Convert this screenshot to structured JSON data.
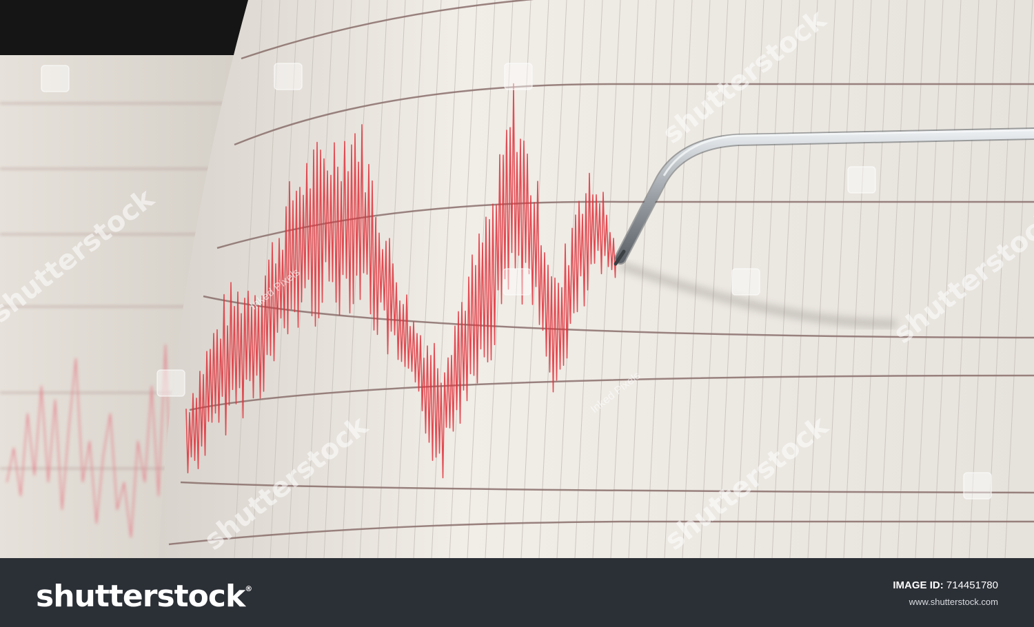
{
  "photo": {
    "subject": "seismograph-needle-drawing-earthquake-trace",
    "paper_color": "#e9e5df",
    "trace_color": "#e0303a",
    "needle_color": "#9aa0a6"
  },
  "watermark": {
    "brand": "shutterstock",
    "contributor": "Inked Pixels"
  },
  "footer": {
    "logo_text": "shutterstock",
    "image_id_label": "IMAGE ID:",
    "image_id_value": "714451780",
    "site_url": "www.shutterstock.com",
    "background": "#2b2f36"
  }
}
